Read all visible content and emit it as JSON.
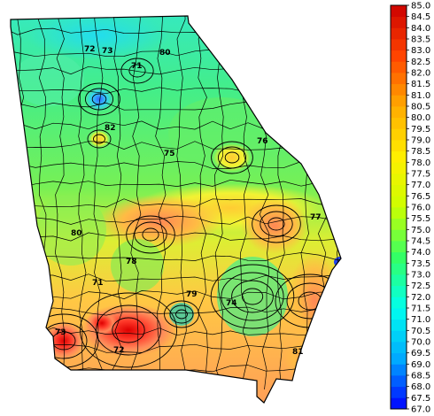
{
  "map": {
    "region": "Georgia",
    "colorbar": {
      "min": 67.0,
      "max": 85.0,
      "step": 0.5,
      "colors": [
        "#0000ff",
        "#00aaff",
        "#00ffee",
        "#33ff66",
        "#ccff00",
        "#ffee00",
        "#ffaa00",
        "#ff4400",
        "#cc0000"
      ]
    },
    "contour_labels": [
      "72",
      "73",
      "71",
      "80",
      "82",
      "75",
      "76",
      "77",
      "78",
      "79",
      "74",
      "81"
    ]
  }
}
